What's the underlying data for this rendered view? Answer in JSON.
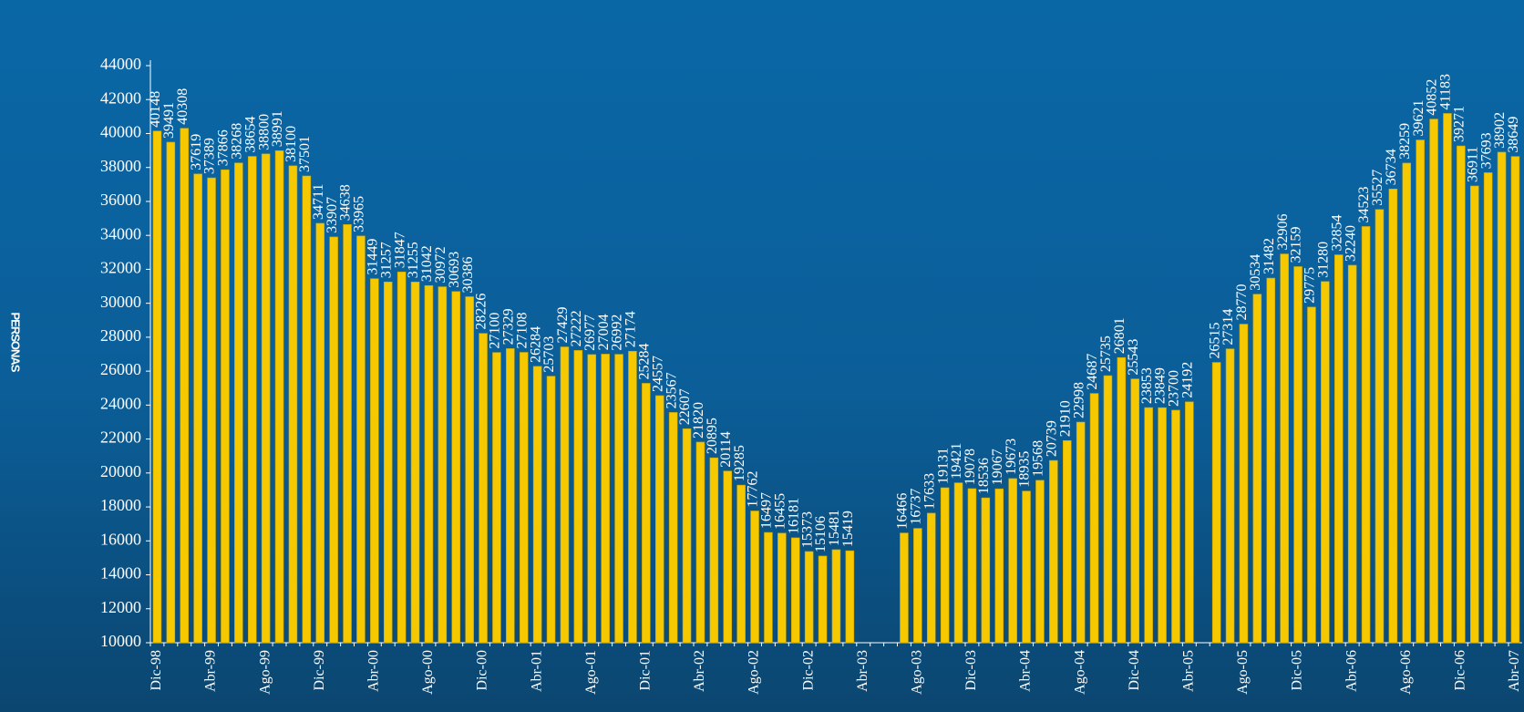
{
  "chart_data": {
    "type": "bar",
    "y_label": "PERSONAS",
    "categories": [
      "Dic-98",
      null,
      null,
      null,
      "Abr-99",
      null,
      null,
      null,
      "Ago-99",
      null,
      null,
      null,
      "Dic-99",
      null,
      null,
      null,
      "Abr-00",
      null,
      null,
      null,
      "Ago-00",
      null,
      null,
      null,
      "Dic-00",
      null,
      null,
      null,
      "Abr-01",
      null,
      null,
      null,
      "Ago-01",
      null,
      null,
      null,
      "Dic-01",
      null,
      null,
      null,
      "Abr-02",
      null,
      null,
      null,
      "Ago-02",
      null,
      null,
      null,
      "Dic-02",
      null,
      null,
      null,
      "Abr-03",
      null,
      null,
      null,
      "Ago-03",
      null,
      null,
      null,
      "Dic-03",
      null,
      null,
      null,
      "Abr-04",
      null,
      null,
      null,
      "Ago-04",
      null,
      null,
      null,
      "Dic-04",
      null,
      null,
      null,
      "Abr-05",
      null,
      null,
      null,
      "Ago-05",
      null,
      null,
      null,
      "Dic-05",
      null,
      null,
      null,
      "Abr-06",
      null,
      null,
      null,
      "Ago-06",
      null,
      null,
      null,
      "Dic-06",
      null,
      null,
      null,
      "Abr-07"
    ],
    "values": [
      40148,
      39491,
      40308,
      37619,
      37389,
      37866,
      38268,
      38654,
      38800,
      38991,
      38100,
      37501,
      34711,
      33907,
      34638,
      33965,
      31449,
      31257,
      31847,
      31255,
      31042,
      30972,
      30693,
      30386,
      28226,
      27100,
      27329,
      27108,
      26284,
      25703,
      27429,
      27222,
      26977,
      27004,
      26992,
      27174,
      25284,
      24557,
      23567,
      22607,
      21820,
      20895,
      20114,
      19285,
      17762,
      16497,
      16455,
      16181,
      15373,
      15106,
      15481,
      15419,
      null,
      null,
      null,
      16466,
      16737,
      17633,
      19131,
      19421,
      19078,
      18536,
      19067,
      19673,
      18935,
      19568,
      20739,
      21910,
      22998,
      24687,
      25735,
      26801,
      25543,
      23853,
      23849,
      23700,
      24192,
      null,
      26515,
      27314,
      28770,
      30534,
      31482,
      32906,
      32159,
      29775,
      31280,
      32854,
      32240,
      34523,
      35527,
      36734,
      38259,
      39621,
      40852,
      41183,
      39271,
      36911,
      37693,
      38902,
      38649
    ],
    "color": "#f5c800",
    "ylim": [
      10000,
      44000
    ],
    "yticks": [
      10000,
      12000,
      14000,
      16000,
      18000,
      20000,
      22000,
      24000,
      26000,
      28000,
      30000,
      32000,
      34000,
      36000,
      38000,
      40000,
      42000,
      44000
    ],
    "grid": false
  }
}
